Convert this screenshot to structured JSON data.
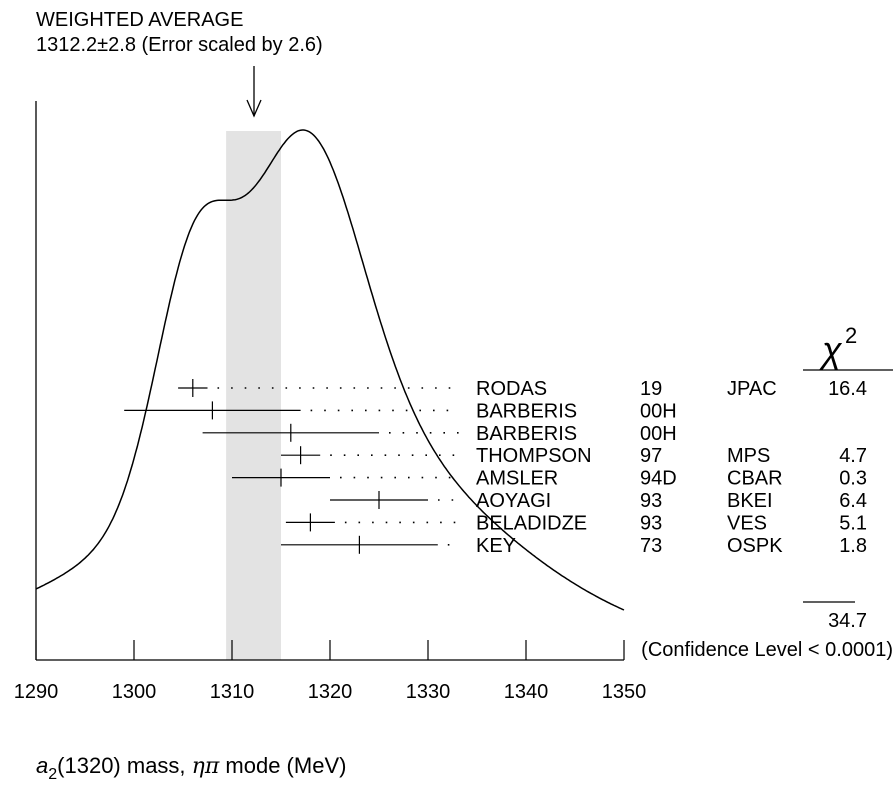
{
  "header": {
    "title": "WEIGHTED AVERAGE",
    "subtitle": "1312.2±2.8 (Error scaled by 2.6)"
  },
  "chart_data": {
    "type": "ideogram",
    "x": {
      "range": [
        1290,
        1350
      ],
      "ticks": [
        1290,
        1300,
        1310,
        1320,
        1330,
        1340,
        1350
      ]
    },
    "xlabel": {
      "particle": "a",
      "sub": "2",
      "rest": "(1320) mass, ",
      "mode": "ηπ",
      "tail": " mode (MeV)"
    },
    "weighted_average": {
      "value": 1312.2,
      "error": 2.8,
      "scale_factor": 2.6
    },
    "chi2_header": "χ",
    "chi2_power": "2",
    "measurements": [
      {
        "author": "RODAS",
        "year": "19",
        "tech": "JPAC",
        "chi2": "16.4",
        "value": 1306.0,
        "error": 1.5
      },
      {
        "author": "BARBERIS",
        "year": "00H",
        "tech": "",
        "chi2": "",
        "value": 1308.0,
        "error": 9.0
      },
      {
        "author": "BARBERIS",
        "year": "00H",
        "tech": "",
        "chi2": "",
        "value": 1316.0,
        "error": 9.0
      },
      {
        "author": "THOMPSON",
        "year": "97",
        "tech": "MPS",
        "chi2": "4.7",
        "value": 1317.0,
        "error": 2.0
      },
      {
        "author": "AMSLER",
        "year": "94D",
        "tech": "CBAR",
        "chi2": "0.3",
        "value": 1315.0,
        "error": 5.0
      },
      {
        "author": "AOYAGI",
        "year": "93",
        "tech": "BKEI",
        "chi2": "6.4",
        "value": 1325.0,
        "error": 5.0
      },
      {
        "author": "BELADIDZE",
        "year": "93",
        "tech": "VES",
        "chi2": "5.1",
        "value": 1318.0,
        "error": 2.5
      },
      {
        "author": "KEY",
        "year": "73",
        "tech": "OSPK",
        "chi2": "1.8",
        "value": 1323.0,
        "error": 8.0
      }
    ],
    "chi2_total": "34.7",
    "confidence_level": "(Confidence Level < 0.0001)"
  }
}
